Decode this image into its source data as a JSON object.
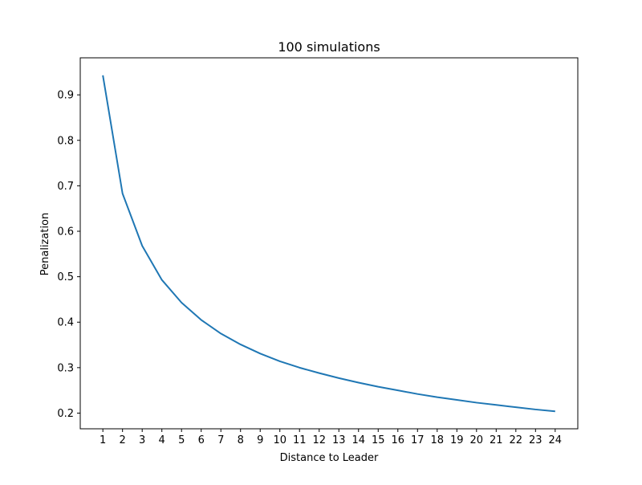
{
  "chart_data": {
    "type": "line",
    "title": "100 simulations",
    "xlabel": "Distance to Leader",
    "ylabel": "Penalization",
    "x": [
      1,
      2,
      3,
      4,
      5,
      6,
      7,
      8,
      9,
      10,
      11,
      12,
      13,
      14,
      15,
      16,
      17,
      18,
      19,
      20,
      21,
      22,
      23,
      24
    ],
    "series": [
      {
        "values": [
          0.943,
          0.683,
          0.568,
          0.493,
          0.443,
          0.405,
          0.375,
          0.351,
          0.331,
          0.314,
          0.3,
          0.288,
          0.277,
          0.267,
          0.258,
          0.25,
          0.242,
          0.235,
          0.229,
          0.223,
          0.218,
          0.213,
          0.208,
          0.204
        ],
        "color": "#1f77b4"
      }
    ],
    "xticks": [
      1,
      2,
      3,
      4,
      5,
      6,
      7,
      8,
      9,
      10,
      11,
      12,
      13,
      14,
      15,
      16,
      17,
      18,
      19,
      20,
      21,
      22,
      23,
      24
    ],
    "yticks": [
      0.2,
      0.3,
      0.4,
      0.5,
      0.6,
      0.7,
      0.8,
      0.9
    ],
    "xlim": [
      -0.15,
      25.15
    ],
    "ylim": [
      0.1655,
      0.9815
    ],
    "grid": false,
    "legend": "none"
  }
}
